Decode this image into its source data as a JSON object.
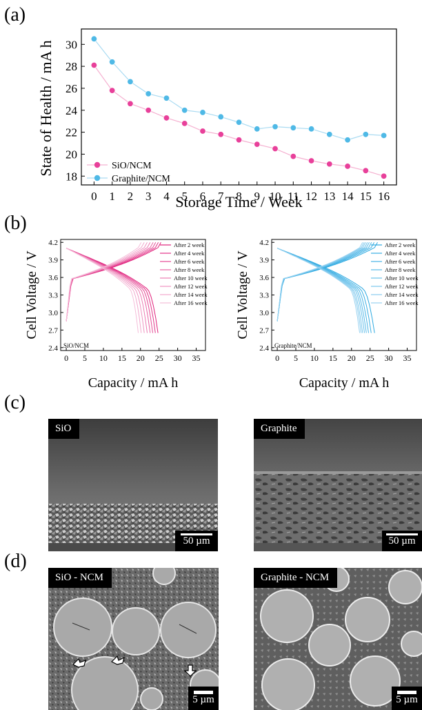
{
  "panels": {
    "a": "(a)",
    "b": "(b)",
    "c": "(c)",
    "d": "(d)"
  },
  "chart_data": [
    {
      "type": "line",
      "xlabel": "Storage Time / Week",
      "ylabel": "State of Health  / mA h",
      "x": [
        0,
        1,
        2,
        3,
        4,
        5,
        6,
        7,
        8,
        9,
        10,
        11,
        12,
        13,
        14,
        15,
        16
      ],
      "xlim": [
        -0.7,
        16.7
      ],
      "ylim": [
        17.2,
        31.4
      ],
      "yticks": [
        18,
        20,
        22,
        24,
        26,
        28,
        30
      ],
      "legend": "bottom-left",
      "series": [
        {
          "name": "SiO/NCM",
          "color": "#e8409a",
          "values": [
            28.1,
            25.8,
            24.6,
            24.0,
            23.3,
            22.8,
            22.1,
            21.8,
            21.3,
            20.9,
            20.5,
            19.8,
            19.4,
            19.1,
            18.9,
            18.5,
            18.0
          ]
        },
        {
          "name": "Graphite/NCM",
          "color": "#4fb9e6",
          "values": [
            30.5,
            28.4,
            26.6,
            25.5,
            25.1,
            24.0,
            23.8,
            23.4,
            22.9,
            22.3,
            22.5,
            22.4,
            22.3,
            21.8,
            21.3,
            21.8,
            21.7
          ]
        }
      ]
    },
    {
      "type": "line",
      "tag": "SiO/NCM",
      "xlabel": "Capacity / mA h",
      "ylabel": "Cell Voltage / V",
      "xlim": [
        -1.5,
        37.5
      ],
      "ylim": [
        2.35,
        4.25
      ],
      "xticks": [
        0,
        5,
        10,
        15,
        20,
        25,
        30,
        35
      ],
      "yticks": [
        2.4,
        2.7,
        3.0,
        3.3,
        3.6,
        3.9,
        4.2
      ],
      "legend": "top-right",
      "capacities": [
        24.7,
        24.0,
        23.3,
        22.6,
        21.8,
        21.0,
        20.2,
        19.4
      ],
      "series": [
        {
          "name": "After 2 week",
          "color": "#e0207a"
        },
        {
          "name": "After 4 week",
          "color": "#e23288"
        },
        {
          "name": "After 6 week",
          "color": "#e54a95"
        },
        {
          "name": "After 8 week",
          "color": "#e862a3"
        },
        {
          "name": "After 10 week",
          "color": "#ec7ab2"
        },
        {
          "name": "After 12 week",
          "color": "#ef92c0"
        },
        {
          "name": "After 14 week",
          "color": "#f2a8cd"
        },
        {
          "name": "After 16 week",
          "color": "#f5bdd9"
        }
      ]
    },
    {
      "type": "line",
      "tag": "Graphite/NCM",
      "xlabel": "Capacity / mA h",
      "ylabel": "Cell Voltage / V",
      "xlim": [
        -1.5,
        37.5
      ],
      "ylim": [
        2.35,
        4.25
      ],
      "xticks": [
        0,
        5,
        10,
        15,
        20,
        25,
        30,
        35
      ],
      "yticks": [
        2.4,
        2.7,
        3.0,
        3.3,
        3.6,
        3.9,
        4.2
      ],
      "legend": "top-right",
      "capacities": [
        26.2,
        25.3,
        24.6,
        24.0,
        23.5,
        23.0,
        22.6,
        22.2
      ],
      "series": [
        {
          "name": "After 2 week",
          "color": "#2aa8e0"
        },
        {
          "name": "After 4 week",
          "color": "#38aee3"
        },
        {
          "name": "After 6 week",
          "color": "#48b4e5"
        },
        {
          "name": "After 8 week",
          "color": "#58bae8"
        },
        {
          "name": "After 10 week",
          "color": "#68c0ea"
        },
        {
          "name": "After 12 week",
          "color": "#78c6ec"
        },
        {
          "name": "After 14 week",
          "color": "#88ccee"
        },
        {
          "name": "After 16 week",
          "color": "#98d2f0"
        }
      ]
    }
  ],
  "sem_c": [
    {
      "tag": "SiO",
      "scale": "50 µm"
    },
    {
      "tag": "Graphite",
      "scale": "50 µm"
    }
  ],
  "sem_d": [
    {
      "tag": "SiO - NCM",
      "scale": "5 µm"
    },
    {
      "tag": "Graphite - NCM",
      "scale": "5 µm"
    }
  ]
}
